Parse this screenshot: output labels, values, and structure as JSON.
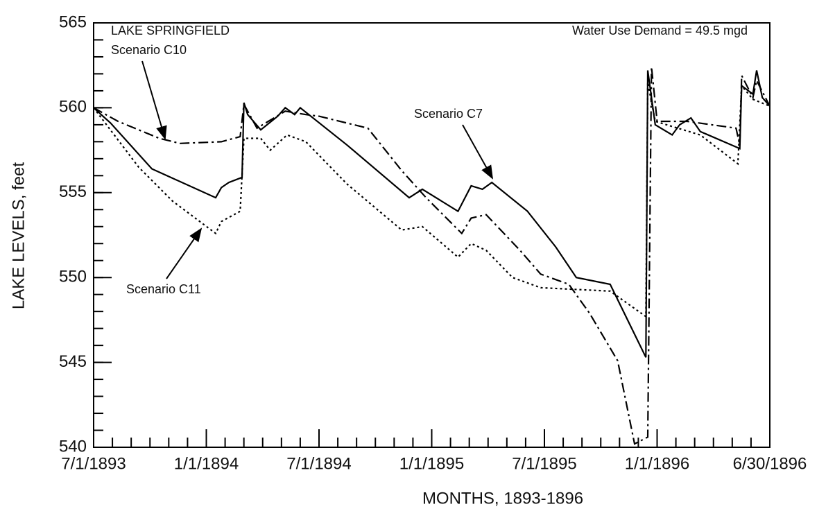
{
  "chart_data": {
    "type": "line",
    "xlabel": "MONTHS, 1893-1896",
    "ylabel": "LAKE LEVELS, feet",
    "annotations": [
      "LAKE SPRINGFIELD",
      "Water Use Demand = 49.5 mgd"
    ],
    "xlim": [
      0,
      36
    ],
    "xticks": [
      {
        "value": 0,
        "label": "7/1/1893"
      },
      {
        "value": 6,
        "label": "1/1/1894"
      },
      {
        "value": 12,
        "label": "7/1/1894"
      },
      {
        "value": 18,
        "label": "1/1/1895"
      },
      {
        "value": 24,
        "label": "7/1/1895"
      },
      {
        "value": 30,
        "label": "1/1/1896"
      },
      {
        "value": 36,
        "label": "6/30/1896"
      }
    ],
    "ylim": [
      540,
      565
    ],
    "yticks": [
      540,
      545,
      550,
      555,
      560,
      565
    ],
    "series": [
      {
        "name": "Scenario C7",
        "color": "#000000",
        "dash": "solid",
        "x": [
          0,
          0.9,
          3.1,
          6.5,
          6.8,
          7.2,
          7.9,
          8.0,
          8.2,
          8.9,
          9.8,
          10.2,
          10.7,
          11.0,
          13.5,
          16.8,
          17.5,
          19.4,
          20.1,
          20.7,
          21.2,
          23.1,
          24.6,
          25.7,
          27.5,
          29.4,
          29.5,
          29.9,
          30.8,
          31.2,
          31.8,
          32.3,
          34.4,
          34.5,
          35.1,
          35.3,
          35.6,
          36
        ],
        "values": [
          560.0,
          559.1,
          556.4,
          554.7,
          555.3,
          555.6,
          555.9,
          560.3,
          559.6,
          558.7,
          559.5,
          560.0,
          559.6,
          560.0,
          557.8,
          554.7,
          555.2,
          553.9,
          555.4,
          555.2,
          555.6,
          553.9,
          551.8,
          550.0,
          549.6,
          545.3,
          562.2,
          559.0,
          558.4,
          559.0,
          559.4,
          558.6,
          557.6,
          561.3,
          560.8,
          562.2,
          560.6,
          560.1
        ]
      },
      {
        "name": "Scenario C10",
        "color": "#000000",
        "dash": "dashdot",
        "x": [
          0,
          1.3,
          3.5,
          4.6,
          6.8,
          7.8,
          8.0,
          8.7,
          10.2,
          11.3,
          12.0,
          14.6,
          16.4,
          17.7,
          19.6,
          20.1,
          20.9,
          22.7,
          23.8,
          25.3,
          26.4,
          27.9,
          28.8,
          29.5,
          29.7,
          30.0,
          31.6,
          34.2,
          34.4,
          34.5,
          35.1,
          35.3,
          36
        ],
        "values": [
          560.0,
          559.2,
          558.2,
          557.9,
          558.0,
          558.3,
          560.2,
          558.8,
          559.8,
          559.6,
          559.5,
          558.8,
          556.3,
          554.7,
          552.6,
          553.5,
          553.7,
          551.6,
          550.2,
          549.6,
          547.9,
          545.1,
          540.2,
          540.6,
          562.4,
          559.2,
          559.2,
          558.8,
          557.8,
          561.9,
          560.6,
          561.6,
          560.1
        ]
      },
      {
        "name": "Scenario C11",
        "color": "#000000",
        "dash": "dotted",
        "x": [
          0,
          2.4,
          4.2,
          6.5,
          6.8,
          7.8,
          8.0,
          8.9,
          9.4,
          10.3,
          11.3,
          13.5,
          16.4,
          17.5,
          19.4,
          20.1,
          20.9,
          22.3,
          23.8,
          27.5,
          29.4,
          29.5,
          29.9,
          32.3,
          34.3,
          34.5,
          35.1,
          36
        ],
        "values": [
          560.0,
          556.5,
          554.5,
          552.6,
          553.3,
          553.9,
          558.2,
          558.2,
          557.5,
          558.4,
          558.0,
          555.5,
          552.8,
          553.0,
          551.2,
          552.0,
          551.6,
          550.0,
          549.4,
          549.2,
          547.7,
          561.5,
          559.2,
          558.4,
          556.7,
          561.3,
          560.5,
          560.1
        ]
      }
    ]
  }
}
